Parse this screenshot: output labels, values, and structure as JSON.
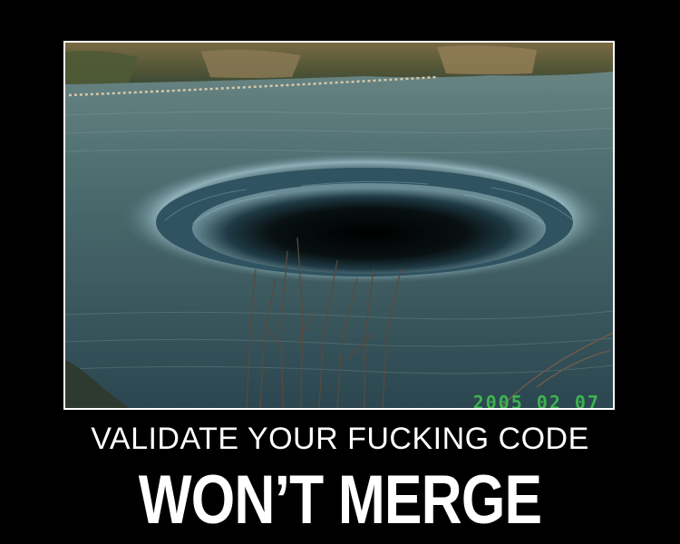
{
  "poster": {
    "photo": {
      "subject": "glory-hole-spillway",
      "timestamp": "2005 02 07"
    },
    "caption": "VALIDATE YOUR FUCKING CODE",
    "headline": "WON’T MERGE"
  },
  "colors": {
    "background": "#000000",
    "border": "#ffffff",
    "text": "#ffffff",
    "timestamp": "#3fbf4f"
  }
}
